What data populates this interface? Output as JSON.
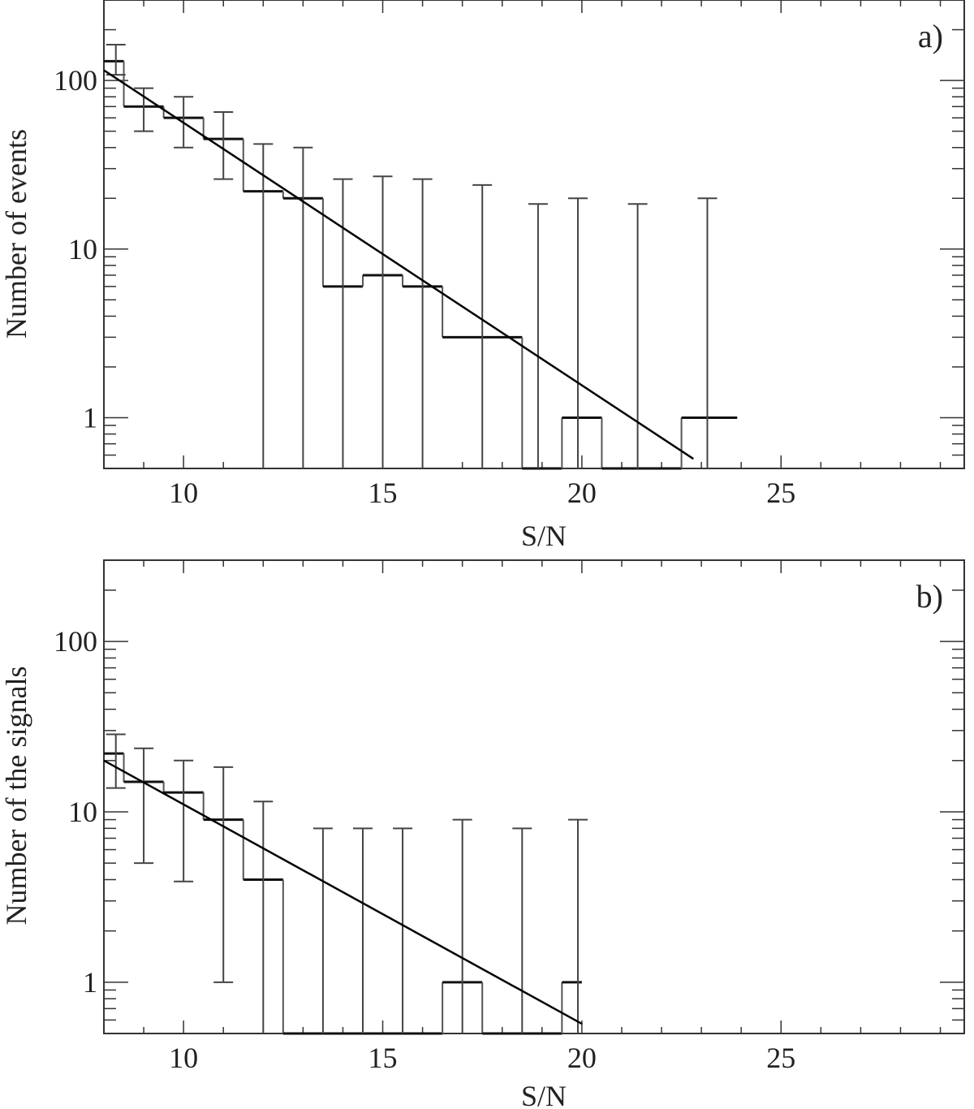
{
  "chart_data": [
    {
      "type": "bar",
      "panel_label": "a)",
      "xlabel": "S/N",
      "ylabel": "Number of events",
      "xlim": [
        8,
        29.6
      ],
      "ylim": [
        0.5,
        300
      ],
      "yscale": "log",
      "xticks": [
        10,
        15,
        20,
        25
      ],
      "yticks": [
        1,
        10,
        100
      ],
      "ytick_labels": [
        "1",
        "10",
        "100"
      ],
      "xtick_labels": [
        "10",
        "15",
        "20",
        "25"
      ],
      "grid": false,
      "histogram": {
        "bin_edges": [
          8,
          8.5,
          9.5,
          10.5,
          11.5,
          12.5,
          13.5,
          14.5,
          15.5,
          16.5,
          17.5,
          18.5,
          19.5,
          20.5,
          21.5,
          22.5,
          23.9
        ],
        "values": [
          130,
          70,
          60,
          45,
          22,
          20,
          6,
          7,
          6,
          3,
          3,
          0,
          1,
          0,
          0,
          1
        ]
      },
      "error_bars": {
        "x": [
          8.3,
          9,
          10,
          11,
          12,
          13,
          14,
          15,
          16,
          17.5,
          18.9,
          19.9,
          21.4,
          23.15
        ],
        "low": [
          108,
          50,
          40,
          26,
          0.5,
          0.5,
          0.5,
          0.5,
          0.5,
          0.5,
          0.5,
          0.5,
          0.5,
          0.5
        ],
        "high": [
          163,
          90,
          80,
          65,
          42,
          40,
          26,
          27,
          26,
          24,
          18.5,
          20,
          18.5,
          20
        ]
      },
      "fit_line": {
        "x": [
          8,
          22.8
        ],
        "y": [
          115,
          0.57
        ]
      }
    },
    {
      "type": "bar",
      "panel_label": "b)",
      "xlabel": "S/N",
      "ylabel": "Number of the signals",
      "xlim": [
        8,
        29.6
      ],
      "ylim": [
        0.5,
        300
      ],
      "yscale": "log",
      "xticks": [
        10,
        15,
        20,
        25
      ],
      "yticks": [
        1,
        10,
        100
      ],
      "ytick_labels": [
        "1",
        "10",
        "100"
      ],
      "xtick_labels": [
        "10",
        "15",
        "20",
        "25"
      ],
      "grid": false,
      "histogram": {
        "bin_edges": [
          8,
          8.5,
          9.5,
          10.5,
          11.5,
          12.5,
          13.5,
          14.5,
          15.5,
          16.5,
          17.5,
          18.5,
          19.5,
          20
        ],
        "values": [
          22,
          15,
          13,
          9,
          4,
          0,
          0,
          0,
          0,
          1,
          0,
          0,
          1
        ]
      },
      "error_bars": {
        "x": [
          8.3,
          9,
          10,
          11,
          12,
          13.5,
          14.5,
          15.5,
          17,
          18.5,
          19.9
        ],
        "low": [
          13.8,
          5,
          3.9,
          1,
          0.5,
          0.5,
          0.5,
          0.5,
          0.5,
          0.5,
          0.5
        ],
        "high": [
          28.5,
          23.6,
          20,
          18.3,
          11.5,
          8,
          8,
          8,
          9,
          8,
          9
        ]
      },
      "fit_line": {
        "x": [
          8,
          20
        ],
        "y": [
          20,
          0.57
        ]
      }
    }
  ]
}
